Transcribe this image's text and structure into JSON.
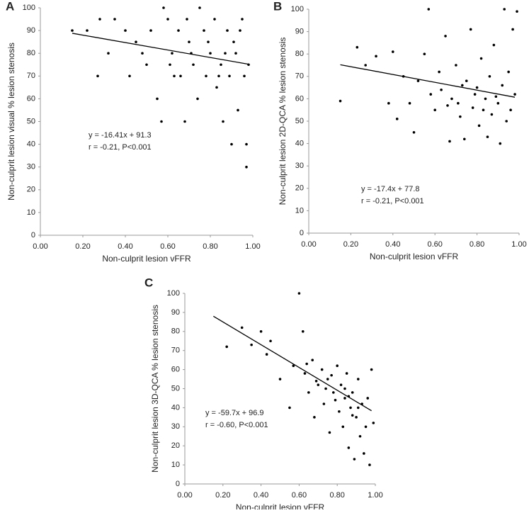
{
  "chart_data": [
    {
      "panel": "A",
      "type": "scatter",
      "color": "#000000",
      "x_label": "Non-culprit lesion vFFR",
      "y_label": "Non-culprit lesion visual  % lesion stenosis",
      "annotations": [
        "y = -16.41x + 91.3",
        "r = -0.21, P<0.001"
      ],
      "xlim": [
        0,
        1
      ],
      "ylim": [
        0,
        100
      ],
      "xticks": [
        {
          "value": 0,
          "label": "0.00"
        },
        {
          "value": 0.2,
          "label": "0.20"
        },
        {
          "value": 0.4,
          "label": "0.40"
        },
        {
          "value": 0.6,
          "label": "0.60"
        },
        {
          "value": 0.8,
          "label": "0.80"
        },
        {
          "value": 1,
          "label": "1.00"
        }
      ],
      "yticks": [
        0,
        10,
        20,
        30,
        40,
        50,
        60,
        70,
        80,
        90,
        100
      ],
      "x": [
        0.15,
        0.22,
        0.27,
        0.28,
        0.32,
        0.35,
        0.4,
        0.42,
        0.45,
        0.48,
        0.5,
        0.52,
        0.55,
        0.57,
        0.58,
        0.6,
        0.62,
        0.63,
        0.65,
        0.68,
        0.7,
        0.72,
        0.74,
        0.75,
        0.77,
        0.78,
        0.8,
        0.82,
        0.83,
        0.85,
        0.86,
        0.88,
        0.89,
        0.9,
        0.91,
        0.92,
        0.93,
        0.95,
        0.96,
        0.97,
        0.97,
        0.98,
        0.66,
        0.71,
        0.79,
        0.84,
        0.87,
        0.94,
        0.61,
        0.69
      ],
      "values": [
        90,
        90,
        70,
        95,
        80,
        95,
        90,
        70,
        85,
        80,
        75,
        90,
        60,
        50,
        100,
        95,
        80,
        70,
        90,
        50,
        85,
        75,
        60,
        100,
        90,
        70,
        80,
        95,
        65,
        75,
        50,
        90,
        70,
        40,
        85,
        80,
        55,
        95,
        70,
        30,
        40,
        75,
        70,
        80,
        85,
        70,
        80,
        90,
        75,
        95
      ],
      "trend": {
        "x": [
          0.15,
          0.98
        ],
        "values": [
          88.8,
          75.2
        ]
      }
    },
    {
      "panel": "B",
      "type": "scatter",
      "color": "#000000",
      "x_label": "Non-culprit lesion vFFR",
      "y_label": "Non-culprit lesion 2D-QCA % lesion stenosis",
      "annotations": [
        "y = -17.4x + 77.8",
        "r = -0.21, P<0.001"
      ],
      "xlim": [
        0,
        1
      ],
      "ylim": [
        0,
        100
      ],
      "xticks": [
        {
          "value": 0,
          "label": "0.00"
        },
        {
          "value": 0.2,
          "label": "0.20"
        },
        {
          "value": 0.4,
          "label": "0.40"
        },
        {
          "value": 0.6,
          "label": "0.60"
        },
        {
          "value": 0.8,
          "label": "0.80"
        },
        {
          "value": 1,
          "label": "1.00"
        }
      ],
      "yticks": [
        0,
        10,
        20,
        30,
        40,
        50,
        60,
        70,
        80,
        90,
        100
      ],
      "x": [
        0.15,
        0.23,
        0.27,
        0.32,
        0.38,
        0.4,
        0.42,
        0.45,
        0.48,
        0.5,
        0.52,
        0.55,
        0.57,
        0.58,
        0.6,
        0.62,
        0.65,
        0.67,
        0.68,
        0.7,
        0.72,
        0.74,
        0.75,
        0.77,
        0.78,
        0.8,
        0.81,
        0.82,
        0.84,
        0.85,
        0.86,
        0.87,
        0.88,
        0.9,
        0.91,
        0.92,
        0.93,
        0.94,
        0.95,
        0.96,
        0.97,
        0.98,
        0.99,
        0.63,
        0.71,
        0.79,
        0.83,
        0.89,
        0.73,
        0.66
      ],
      "values": [
        59,
        83,
        75,
        79,
        58,
        81,
        51,
        70,
        58,
        45,
        68,
        80,
        100,
        62,
        55,
        72,
        88,
        41,
        60,
        75,
        52,
        42,
        68,
        91,
        56,
        65,
        48,
        78,
        60,
        43,
        70,
        53,
        84,
        58,
        40,
        66,
        100,
        50,
        72,
        55,
        91,
        62,
        99,
        64,
        58,
        62,
        55,
        61,
        66,
        57
      ],
      "trend": {
        "x": [
          0.15,
          0.98
        ],
        "values": [
          75.2,
          60.7
        ]
      }
    },
    {
      "panel": "C",
      "type": "scatter",
      "color": "#000000",
      "x_label": "Non-culprit lesion vFFR",
      "y_label": "Non-culprit lesion 3D-QCA % lesion stenosis",
      "annotations": [
        "y = -59.7x + 96.9",
        "r = -0.60, P<0.001"
      ],
      "xlim": [
        0,
        1
      ],
      "ylim": [
        0,
        100
      ],
      "xticks": [
        {
          "value": 0,
          "label": "0.00"
        },
        {
          "value": 0.2,
          "label": "0.20"
        },
        {
          "value": 0.4,
          "label": "0.40"
        },
        {
          "value": 0.6,
          "label": "0.60"
        },
        {
          "value": 0.8,
          "label": "0.80"
        },
        {
          "value": 1,
          "label": "1.00"
        }
      ],
      "yticks": [
        0,
        10,
        20,
        30,
        40,
        50,
        60,
        70,
        80,
        90,
        100
      ],
      "x": [
        0.22,
        0.3,
        0.35,
        0.4,
        0.43,
        0.45,
        0.5,
        0.55,
        0.57,
        0.6,
        0.62,
        0.63,
        0.65,
        0.67,
        0.68,
        0.7,
        0.72,
        0.73,
        0.75,
        0.76,
        0.78,
        0.8,
        0.81,
        0.82,
        0.83,
        0.84,
        0.85,
        0.86,
        0.87,
        0.88,
        0.89,
        0.9,
        0.91,
        0.92,
        0.93,
        0.94,
        0.95,
        0.96,
        0.97,
        0.98,
        0.99,
        0.74,
        0.79,
        0.84,
        0.88,
        0.77,
        0.69,
        0.91,
        0.64,
        0.86
      ],
      "values": [
        72,
        82,
        73,
        80,
        68,
        75,
        55,
        40,
        62,
        100,
        80,
        58,
        48,
        65,
        35,
        52,
        60,
        42,
        55,
        27,
        48,
        62,
        38,
        52,
        30,
        45,
        58,
        19,
        40,
        48,
        13,
        35,
        55,
        25,
        42,
        16,
        30,
        45,
        10,
        60,
        32,
        50,
        44,
        50,
        36,
        57,
        54,
        40,
        63,
        46
      ],
      "trend": {
        "x": [
          0.15,
          0.98
        ],
        "values": [
          88,
          38.4
        ]
      }
    }
  ]
}
